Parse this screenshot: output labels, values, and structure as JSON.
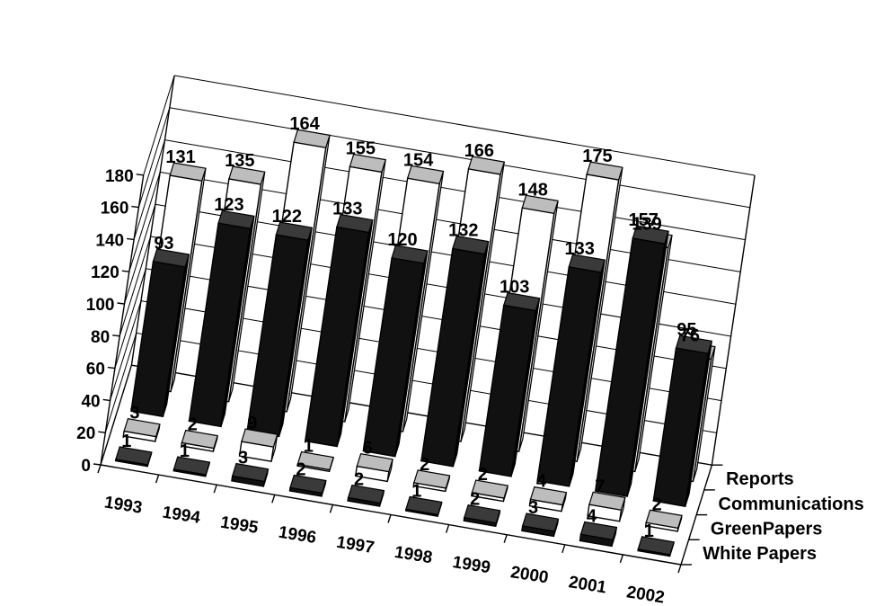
{
  "chart_data": {
    "type": "bar",
    "subtype": "3d-column",
    "categories": [
      "1993",
      "1994",
      "1995",
      "1996",
      "1997",
      "1998",
      "1999",
      "2000",
      "2001",
      "2002"
    ],
    "series": [
      {
        "name": "White Papers",
        "values": [
          1,
          1,
          3,
          2,
          2,
          1,
          2,
          3,
          4,
          1
        ]
      },
      {
        "name": "GreenPapers",
        "values": [
          3,
          2,
          9,
          1,
          6,
          2,
          2,
          4,
          7,
          2
        ]
      },
      {
        "name": "Communications",
        "values": [
          93,
          123,
          122,
          133,
          120,
          132,
          103,
          133,
          157,
          95
        ]
      },
      {
        "name": "Reports",
        "values": [
          131,
          135,
          164,
          155,
          154,
          166,
          148,
          175,
          139,
          76
        ]
      }
    ],
    "yticks": [
      "0",
      "20",
      "40",
      "60",
      "80",
      "100",
      "120",
      "140",
      "160",
      "180"
    ],
    "ylim": [
      0,
      180
    ],
    "grid": true,
    "data_labels": true,
    "legend": "series axis on right (depth axis)",
    "colors": {
      "White Papers": "#111111",
      "GreenPapers": "#ffffff",
      "Communications": "#111111",
      "Reports": "#ffffff"
    }
  }
}
